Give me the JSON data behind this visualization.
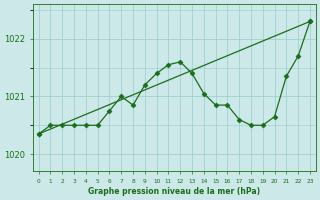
{
  "x": [
    0,
    1,
    2,
    3,
    4,
    5,
    6,
    7,
    8,
    9,
    10,
    11,
    12,
    13,
    14,
    15,
    16,
    17,
    18,
    19,
    20,
    21,
    22,
    23
  ],
  "pressure": [
    1020.35,
    1020.5,
    1020.5,
    1020.5,
    1020.5,
    1020.5,
    1020.75,
    1021.0,
    1020.85,
    1021.2,
    1021.4,
    1021.55,
    1021.6,
    1021.4,
    1021.05,
    1020.85,
    1020.85,
    1020.6,
    1020.5,
    1020.5,
    1020.65,
    1021.35,
    1021.7,
    1022.3
  ],
  "trend_x": [
    0,
    23
  ],
  "trend_y": [
    1020.35,
    1022.3
  ],
  "line_color": "#1a6e1a",
  "bg_color": "#cce8e8",
  "grid_color": "#99cccc",
  "axis_label_color": "#1a6e1a",
  "tick_color": "#1a6e1a",
  "xlabel": "Graphe pression niveau de la mer (hPa)",
  "yticks": [
    1020,
    1021,
    1022
  ],
  "xticks": [
    0,
    1,
    2,
    3,
    4,
    5,
    6,
    7,
    8,
    9,
    10,
    11,
    12,
    13,
    14,
    15,
    16,
    17,
    18,
    19,
    20,
    21,
    22,
    23
  ],
  "ylim": [
    1019.7,
    1022.6
  ],
  "xlim": [
    -0.5,
    23.5
  ]
}
